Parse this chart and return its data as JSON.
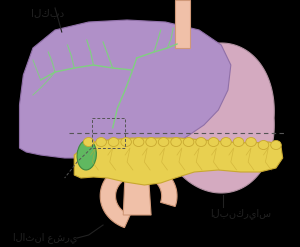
{
  "bg_color": "#000000",
  "liver_color": "#b090c8",
  "liver_edge": "#9070a8",
  "stomach_color": "#d4aac0",
  "stomach_edge": "#b090a0",
  "pancreas_color": "#e8d050",
  "pancreas_edge": "#c8a830",
  "pancreas_inner_color": "#d4b840",
  "duodenum_color": "#f0c0a8",
  "duodenum_edge": "#d09878",
  "gallbladder_color": "#60b860",
  "gallbladder_edge": "#408840",
  "bile_color": "#80d080",
  "esoph_color": "#f0c0a8",
  "esoph_edge": "#d09878",
  "dash_color": "#555555",
  "label_color": "#222222",
  "label_liver": "الكبد",
  "label_pancreas": "البنكرياس",
  "label_duodenum": "الاثنا عشري",
  "figsize": [
    3.0,
    2.47
  ],
  "dpi": 100
}
